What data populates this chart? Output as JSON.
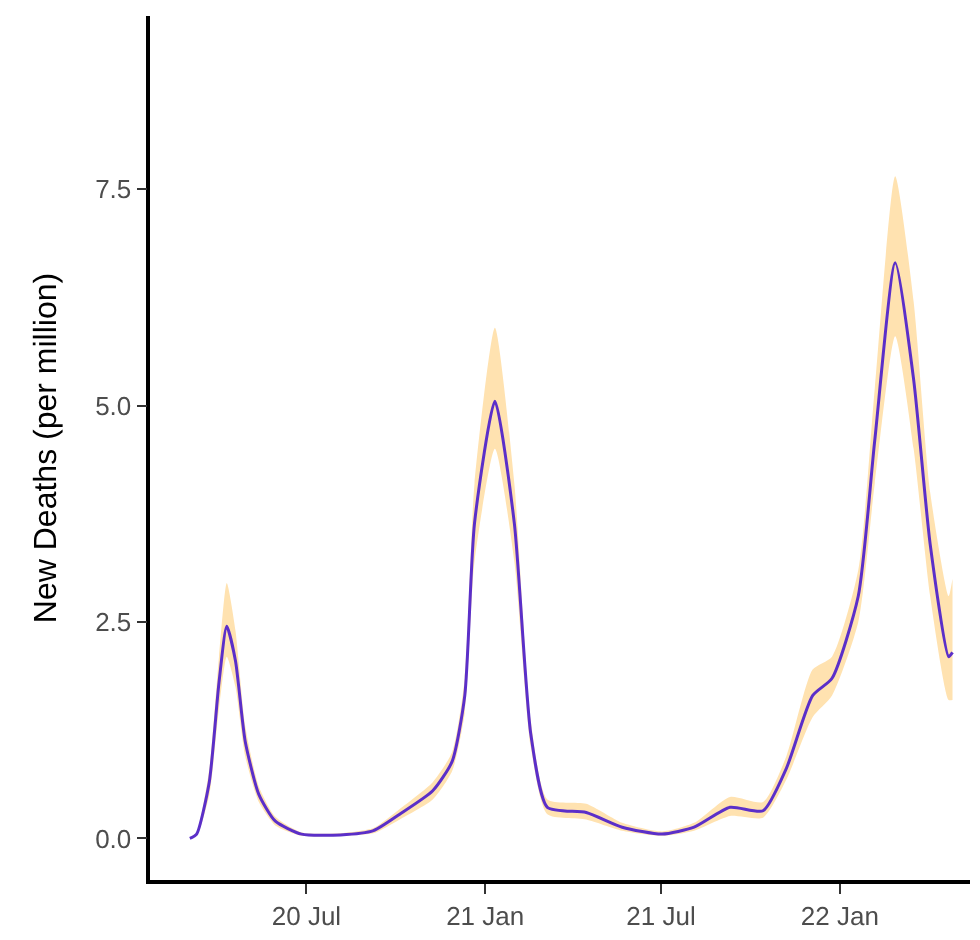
{
  "chart_data": {
    "type": "line",
    "ylabel": "New Deaths (per million)",
    "xlim": [
      "2020-01-22",
      "2022-05-15"
    ],
    "ylim": [
      -0.48,
      9.5
    ],
    "xticks": [
      {
        "value": "2020-07-01",
        "label": "20 Jul"
      },
      {
        "value": "2021-01-01",
        "label": "21 Jan"
      },
      {
        "value": "2021-07-01",
        "label": "21 Jul"
      },
      {
        "value": "2022-01-01",
        "label": "22 Jan"
      }
    ],
    "yticks": [
      {
        "value": 0,
        "label": "0.0"
      },
      {
        "value": 2.5,
        "label": "2.5"
      },
      {
        "value": 5,
        "label": "5.0"
      },
      {
        "value": 7.5,
        "label": "7.5"
      }
    ],
    "x": [
      "2020-03-03",
      "2020-03-10",
      "2020-03-23",
      "2020-04-02",
      "2020-04-10",
      "2020-04-19",
      "2020-04-29",
      "2020-05-13",
      "2020-05-30",
      "2020-06-26",
      "2020-08-05",
      "2020-09-08",
      "2020-10-05",
      "2020-11-08",
      "2020-11-28",
      "2020-12-11",
      "2020-12-21",
      "2021-01-11",
      "2021-01-31",
      "2021-02-17",
      "2021-03-06",
      "2021-04-15",
      "2021-05-22",
      "2021-07-02",
      "2021-08-04",
      "2021-09-10",
      "2021-10-14",
      "2021-11-07",
      "2021-12-04",
      "2021-12-24",
      "2022-01-20",
      "2022-02-06",
      "2022-02-27",
      "2022-03-18",
      "2022-04-04",
      "2022-04-23",
      "2022-04-27"
    ],
    "series": [
      {
        "color": "#5b2fc9",
        "values": [
          0,
          0.05,
          0.65,
          1.8,
          2.45,
          2.05,
          1.12,
          0.51,
          0.2,
          0.05,
          0.04,
          0.09,
          0.28,
          0.55,
          0.89,
          1.65,
          3.64,
          5.05,
          3.64,
          1.2,
          0.36,
          0.3,
          0.13,
          0.05,
          0.13,
          0.36,
          0.32,
          0.81,
          1.65,
          1.85,
          2.8,
          4.6,
          6.65,
          5.3,
          3.4,
          2.1,
          2.15
        ],
        "upper": [
          0,
          0.07,
          0.8,
          2.1,
          2.95,
          2.4,
          1.3,
          0.6,
          0.25,
          0.07,
          0.06,
          0.12,
          0.34,
          0.65,
          1.0,
          1.85,
          4.1,
          5.9,
          4.1,
          1.35,
          0.45,
          0.4,
          0.18,
          0.08,
          0.18,
          0.48,
          0.42,
          0.95,
          1.95,
          2.1,
          3.1,
          5.2,
          7.65,
          6.2,
          4.0,
          2.8,
          3.0
        ],
        "lower": [
          0,
          0.03,
          0.5,
          1.5,
          2.1,
          1.75,
          0.95,
          0.42,
          0.15,
          0.03,
          0.03,
          0.06,
          0.22,
          0.45,
          0.78,
          1.45,
          3.2,
          4.5,
          3.2,
          1.05,
          0.28,
          0.22,
          0.09,
          0.03,
          0.09,
          0.26,
          0.24,
          0.68,
          1.4,
          1.65,
          2.5,
          4.1,
          5.8,
          4.5,
          2.8,
          1.6,
          1.6
        ]
      }
    ]
  }
}
